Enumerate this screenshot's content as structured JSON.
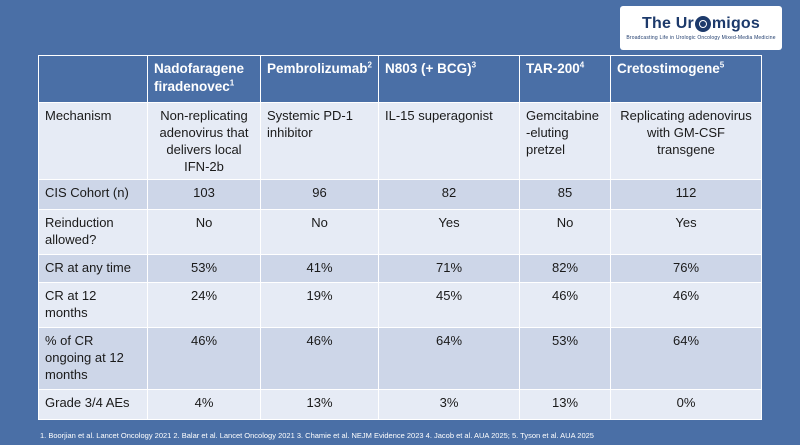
{
  "logo": {
    "title_prefix": "The Ur",
    "title_suffix": "migos",
    "subtitle": "Broadcasting Life in Urologic Oncology Mixed-Media Medicine"
  },
  "table": {
    "corner": "",
    "headers": [
      {
        "name": "Nadofaragene firadenovec",
        "sup": "1"
      },
      {
        "name": "Pembrolizumab",
        "sup": "2"
      },
      {
        "name": "N803 (+ BCG)",
        "sup": "3"
      },
      {
        "name": "TAR-200",
        "sup": "4"
      },
      {
        "name": "Cretostimogene",
        "sup": "5"
      }
    ],
    "rows": [
      {
        "label": "Mechanism",
        "cells": [
          "Non-replicating adenovirus that delivers local IFN-2b",
          "Systemic PD-1 inhibitor",
          "IL-15 superagonist",
          "Gemcitabine -eluting pretzel",
          "Replicating adenovirus with GM-CSF transgene"
        ]
      },
      {
        "label": "CIS Cohort (n)",
        "cells": [
          "103",
          "96",
          "82",
          "85",
          "112"
        ]
      },
      {
        "label": "Reinduction allowed?",
        "cells": [
          "No",
          "No",
          "Yes",
          "No",
          "Yes"
        ]
      },
      {
        "label": "CR at any time",
        "cells": [
          "53%",
          "41%",
          "71%",
          "82%",
          "76%"
        ]
      },
      {
        "label": "CR at 12 months",
        "cells": [
          "24%",
          "19%",
          "45%",
          "46%",
          "46%"
        ]
      },
      {
        "label": "% of CR ongoing at 12 months",
        "cells": [
          "46%",
          "46%",
          "64%",
          "53%",
          "64%"
        ]
      },
      {
        "label": "Grade 3/4 AEs",
        "cells": [
          "4%",
          "13%",
          "3%",
          "13%",
          "0%"
        ]
      }
    ]
  },
  "footer": "1. Boorjian et al. Lancet Oncology 2021 2. Balar et al. Lancet Oncology 2021 3. Chamie et al. NEJM Evidence 2023 4. Jacob et al. AUA 2025; 5. Tyson et al. AUA 2025",
  "colors": {
    "background": "#4a6fa6",
    "row_light": "#e6ebf5",
    "row_dark": "#cdd6e8",
    "logo_text": "#1d3a6b"
  }
}
